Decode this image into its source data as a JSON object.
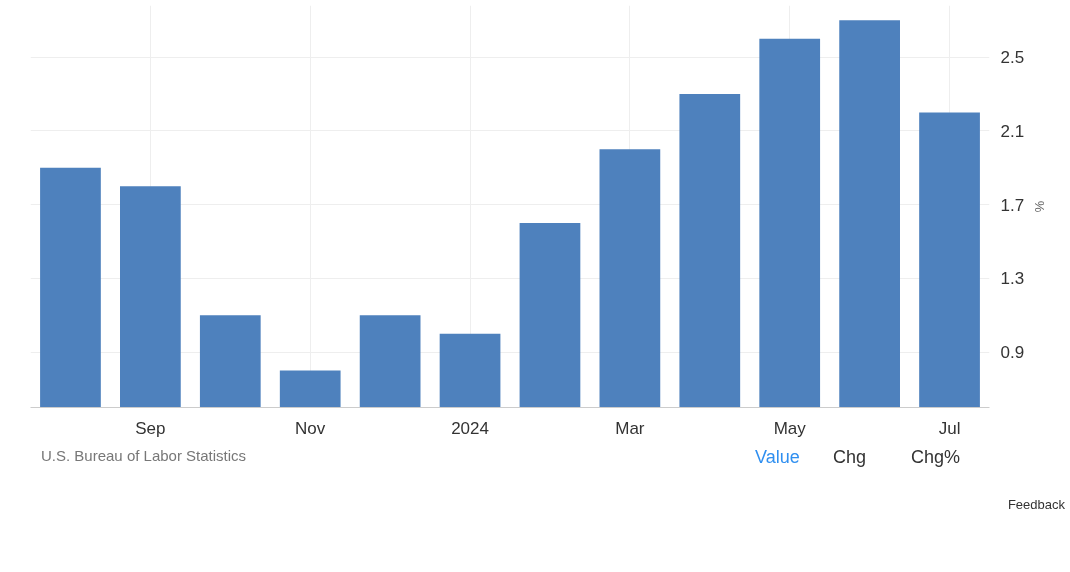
{
  "chart_data": {
    "type": "bar",
    "ylabel": "%",
    "categories": [
      null,
      "Sep",
      null,
      "Nov",
      null,
      "2024",
      null,
      "Mar",
      null,
      "May",
      null,
      "Jul"
    ],
    "values": [
      1.9,
      1.8,
      1.1,
      0.8,
      1.1,
      1.0,
      1.6,
      2.0,
      2.3,
      2.6,
      2.7,
      2.2
    ],
    "color": "#4e81bd",
    "ylim": [
      0.6,
      2.78
    ],
    "yticks": [
      0.9,
      1.3,
      1.7,
      2.1,
      2.5
    ],
    "grid": true,
    "annotations": [
      "U.S. Bureau of Labor Statistics",
      "Value",
      "Chg",
      "Chg%",
      "Feedback"
    ]
  }
}
